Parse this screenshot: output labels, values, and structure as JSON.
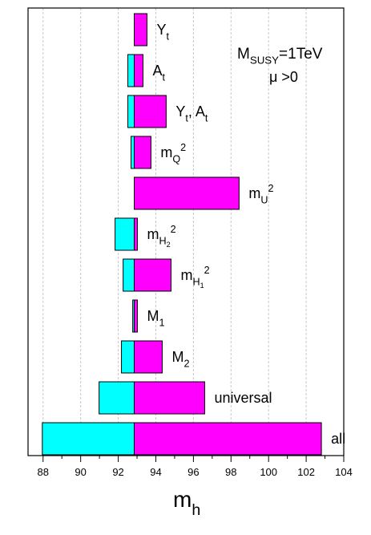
{
  "chart_data": {
    "type": "tornado",
    "base": 92.85,
    "categories": [
      [
        {
          "text": "Y"
        },
        {
          "text": "t",
          "shift": "sub"
        }
      ],
      [
        {
          "text": "A"
        },
        {
          "text": "t",
          "shift": "sub"
        }
      ],
      [
        {
          "text": "Y"
        },
        {
          "text": "t",
          "shift": "sub"
        },
        {
          "text": ", A"
        },
        {
          "text": "t",
          "shift": "sub"
        }
      ],
      [
        {
          "text": "m"
        },
        {
          "text": "Q",
          "shift": "sub"
        },
        {
          "text": "2",
          "shift": "sup"
        }
      ],
      [
        {
          "text": "m"
        },
        {
          "text": "U",
          "shift": "sub"
        },
        {
          "text": "2",
          "shift": "sup"
        }
      ],
      [
        {
          "text": "m"
        },
        {
          "text": "H",
          "shift": "sub"
        },
        {
          "text": "2",
          "shift": "subsub"
        },
        {
          "text": "2",
          "shift": "sup"
        }
      ],
      [
        {
          "text": "m"
        },
        {
          "text": "H",
          "shift": "sub"
        },
        {
          "text": "1",
          "shift": "subsub"
        },
        {
          "text": "2",
          "shift": "sup"
        }
      ],
      [
        {
          "text": "M"
        },
        {
          "text": "1",
          "shift": "sub"
        }
      ],
      [
        {
          "text": "M"
        },
        {
          "text": "2",
          "shift": "sub"
        }
      ],
      [
        {
          "text": "universal"
        }
      ],
      [
        {
          "text": "all"
        }
      ]
    ],
    "series": [
      {
        "color": "#00ffff",
        "values": [
          92.85,
          92.51,
          92.51,
          92.68,
          92.85,
          91.83,
          92.26,
          92.77,
          92.17,
          90.98,
          87.96
        ]
      },
      {
        "color": "#ff00ff",
        "values": [
          93.53,
          93.32,
          94.55,
          93.74,
          98.43,
          93.02,
          94.81,
          93.02,
          94.34,
          96.6,
          102.81
        ]
      }
    ],
    "xlabel": [
      {
        "text": "m"
      },
      {
        "text": "h",
        "shift": "sub"
      }
    ],
    "annotations": [
      [
        {
          "text": "M"
        },
        {
          "text": "SUSY",
          "shift": "sub"
        },
        {
          "text": "=1TeV"
        }
      ],
      [
        {
          "text": "μ >0"
        }
      ]
    ],
    "xlim": [
      87.2,
      104
    ],
    "xticks": [
      88,
      90,
      92,
      94,
      96,
      98,
      100,
      102,
      104
    ],
    "xminorticks": [
      89,
      91,
      93,
      95,
      97,
      99,
      101,
      103
    ],
    "grid": true
  }
}
